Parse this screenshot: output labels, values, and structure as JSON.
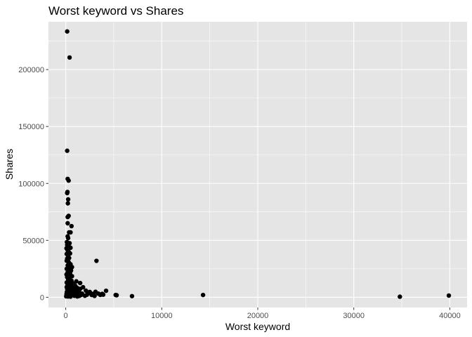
{
  "chart_data": {
    "type": "scatter",
    "title": "Worst keyword vs Shares",
    "xlabel": "Worst keyword",
    "ylabel": "Shares",
    "xlim": [
      -1800,
      41800
    ],
    "ylim": [
      -9000,
      242000
    ],
    "x_ticks": [
      0,
      10000,
      20000,
      30000,
      40000
    ],
    "y_ticks": [
      0,
      50000,
      100000,
      150000,
      200000
    ],
    "grid": true,
    "colors": {
      "panel": "#e5e5e5",
      "grid": "#ffffff",
      "point": "#000000"
    },
    "points": [
      [
        150,
        233500
      ],
      [
        400,
        210600
      ],
      [
        150,
        128700
      ],
      [
        200,
        104000
      ],
      [
        300,
        102500
      ],
      [
        180,
        92500
      ],
      [
        150,
        91500
      ],
      [
        250,
        86000
      ],
      [
        220,
        82500
      ],
      [
        300,
        71500
      ],
      [
        200,
        70500
      ],
      [
        200,
        65000
      ],
      [
        600,
        62500
      ],
      [
        350,
        57000
      ],
      [
        500,
        57000
      ],
      [
        200,
        53500
      ],
      [
        250,
        52000
      ],
      [
        120,
        48500
      ],
      [
        400,
        47500
      ],
      [
        150,
        46000
      ],
      [
        300,
        45000
      ],
      [
        80,
        43000
      ],
      [
        500,
        43500
      ],
      [
        200,
        41000
      ],
      [
        300,
        40000
      ],
      [
        100,
        38000
      ],
      [
        450,
        38500
      ],
      [
        250,
        36000
      ],
      [
        150,
        34000
      ],
      [
        350,
        34500
      ],
      [
        100,
        32000
      ],
      [
        300,
        31000
      ],
      [
        500,
        29000
      ],
      [
        200,
        28000
      ],
      [
        400,
        27000
      ],
      [
        650,
        26500
      ],
      [
        100,
        25000
      ],
      [
        300,
        24000
      ],
      [
        550,
        23500
      ],
      [
        200,
        22000
      ],
      [
        450,
        21000
      ],
      [
        80,
        20000
      ],
      [
        300,
        19500
      ],
      [
        650,
        18500
      ],
      [
        150,
        17500
      ],
      [
        400,
        16500
      ],
      [
        250,
        15000
      ],
      [
        600,
        14500
      ],
      [
        1100,
        14000
      ],
      [
        100,
        13000
      ],
      [
        350,
        12500
      ],
      [
        800,
        12000
      ],
      [
        1500,
        12500
      ],
      [
        200,
        11000
      ],
      [
        500,
        10500
      ],
      [
        1000,
        10000
      ],
      [
        100,
        9000
      ],
      [
        300,
        8800
      ],
      [
        700,
        8500
      ],
      [
        1200,
        8200
      ],
      [
        1800,
        8800
      ],
      [
        150,
        7500
      ],
      [
        450,
        7200
      ],
      [
        900,
        7000
      ],
      [
        1500,
        7400
      ],
      [
        200,
        6000
      ],
      [
        600,
        5800
      ],
      [
        1100,
        5600
      ],
      [
        2100,
        5800
      ],
      [
        120,
        4800
      ],
      [
        400,
        4600
      ],
      [
        800,
        4500
      ],
      [
        1400,
        4300
      ],
      [
        2500,
        4700
      ],
      [
        3100,
        4800
      ],
      [
        4200,
        5700
      ],
      [
        100,
        3500
      ],
      [
        350,
        3300
      ],
      [
        700,
        3200
      ],
      [
        1200,
        3000
      ],
      [
        1700,
        3200
      ],
      [
        2300,
        3400
      ],
      [
        2800,
        3000
      ],
      [
        3400,
        3200
      ],
      [
        3800,
        3000
      ],
      [
        80,
        2500
      ],
      [
        300,
        2300
      ],
      [
        600,
        2200
      ],
      [
        1000,
        2100
      ],
      [
        1600,
        2000
      ],
      [
        2200,
        2200
      ],
      [
        2700,
        2000
      ],
      [
        3600,
        2100
      ],
      [
        3900,
        2300
      ],
      [
        5200,
        2000
      ],
      [
        5300,
        1800
      ],
      [
        150,
        1500
      ],
      [
        400,
        1400
      ],
      [
        900,
        1300
      ],
      [
        1400,
        1200
      ],
      [
        2000,
        1300
      ],
      [
        3000,
        1200
      ],
      [
        50,
        800
      ],
      [
        250,
        700
      ],
      [
        500,
        600
      ],
      [
        1200,
        700
      ],
      [
        6900,
        1000
      ],
      [
        14300,
        2000
      ],
      [
        34800,
        500
      ],
      [
        39900,
        1500
      ],
      [
        3200,
        32000
      ]
    ]
  }
}
